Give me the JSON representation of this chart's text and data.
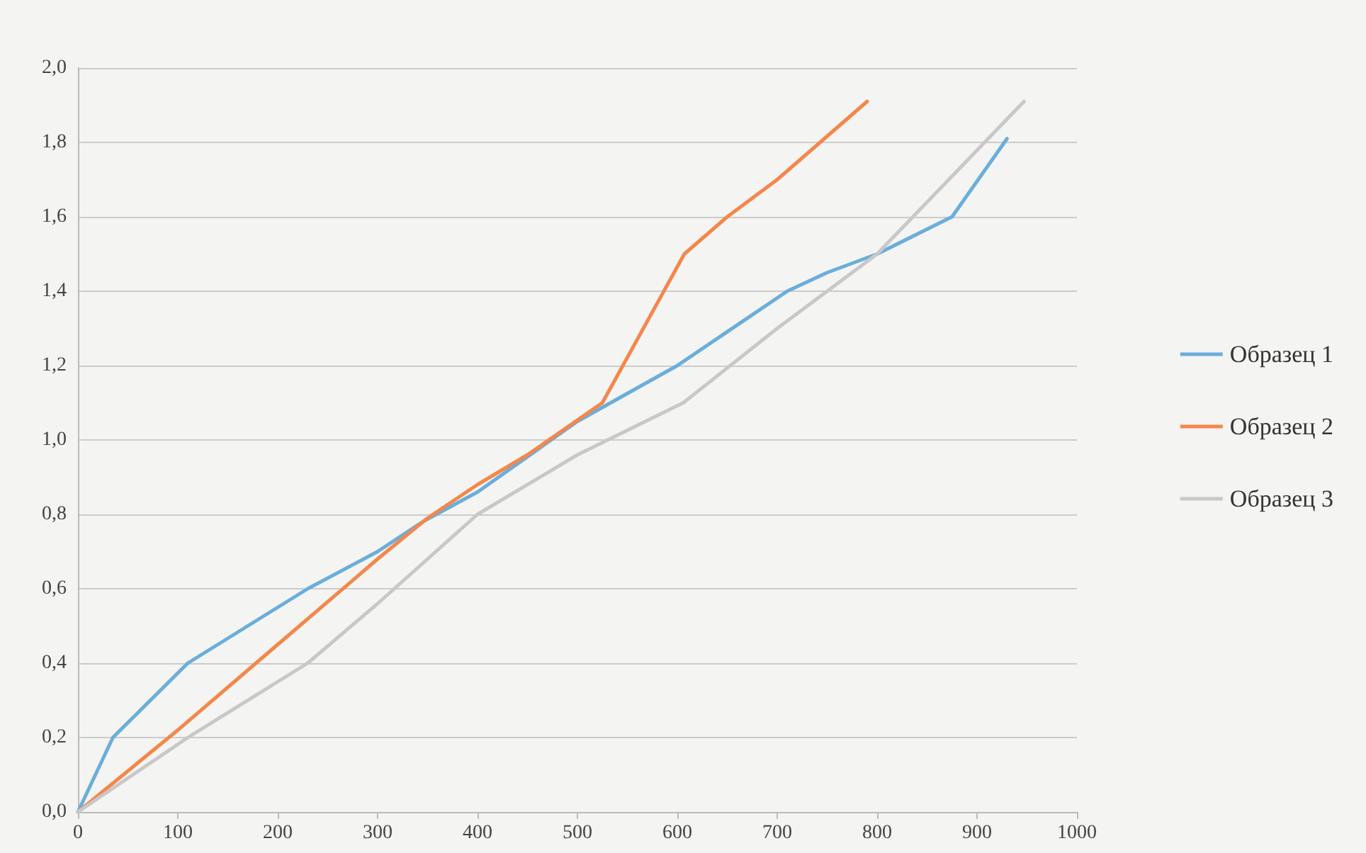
{
  "chart_data": {
    "type": "line",
    "series": [
      {
        "name": "Образец 1",
        "color": "#6aaedb",
        "x": [
          0,
          35,
          110,
          230,
          300,
          345,
          400,
          500,
          600,
          710,
          750,
          800,
          875,
          930
        ],
        "values": [
          0,
          0.2,
          0.4,
          0.6,
          0.7,
          0.78,
          0.86,
          1.05,
          1.2,
          1.4,
          1.45,
          1.5,
          1.6,
          1.81
        ]
      },
      {
        "name": "Образец 2",
        "color": "#f4874b",
        "x": [
          0,
          100,
          200,
          300,
          350,
          400,
          450,
          525,
          607,
          650,
          700,
          790
        ],
        "values": [
          0,
          0.22,
          0.45,
          0.68,
          0.79,
          0.88,
          0.96,
          1.1,
          1.5,
          1.6,
          1.7,
          1.91
        ]
      },
      {
        "name": "Образец 3",
        "color": "#c8c8c8",
        "x": [
          0,
          110,
          230,
          300,
          350,
          400,
          500,
          606,
          700,
          800,
          947
        ],
        "values": [
          0,
          0.2,
          0.4,
          0.56,
          0.68,
          0.8,
          0.96,
          1.1,
          1.3,
          1.5,
          1.91
        ]
      }
    ],
    "xlim": [
      0,
      1000
    ],
    "xticks": [
      0,
      100,
      200,
      300,
      400,
      500,
      600,
      700,
      800,
      900,
      1000
    ],
    "ylim": [
      0,
      2
    ],
    "yticks": [
      {
        "value": 0,
        "label": "0,0"
      },
      {
        "value": 0.2,
        "label": "0,2"
      },
      {
        "value": 0.4,
        "label": "0,4"
      },
      {
        "value": 0.6,
        "label": "0,6"
      },
      {
        "value": 0.8,
        "label": "0,8"
      },
      {
        "value": 1,
        "label": "1,0"
      },
      {
        "value": 1.2,
        "label": "1,2"
      },
      {
        "value": 1.4,
        "label": "1,4"
      },
      {
        "value": 1.6,
        "label": "1,6"
      },
      {
        "value": 1.8,
        "label": "1,8"
      },
      {
        "value": 2,
        "label": "2,0"
      }
    ],
    "grid": "y",
    "legend": "right",
    "marker": "none",
    "line_style": "solid"
  }
}
